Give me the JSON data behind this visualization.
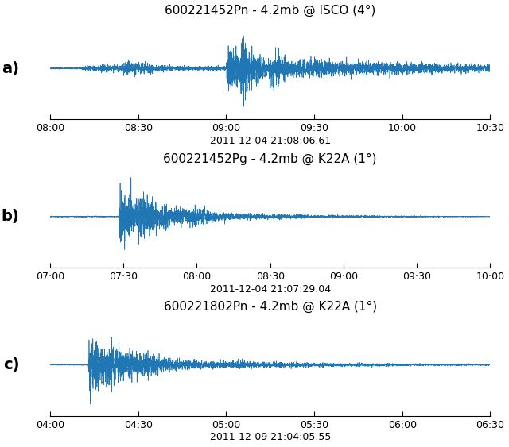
{
  "panels": [
    {
      "label": "a)",
      "title": "600221452Pn - 4.2mb @ ISCO (4°)",
      "xlabel": "2011-12-04 21:08:06.61",
      "xlim_minutes": [
        0,
        150
      ],
      "xtick_minutes": [
        0,
        30,
        60,
        90,
        120,
        150
      ],
      "xtick_labels": [
        "08:00",
        "08:30",
        "09:00",
        "09:30",
        "10:00",
        "10:30"
      ],
      "onset_minute": 10,
      "waveform_type": "a"
    },
    {
      "label": "b)",
      "title": "600221452Pg - 4.2mb @ K22A (1°)",
      "xlabel": "2011-12-04 21:07:29.04",
      "xlim_minutes": [
        0,
        180
      ],
      "xtick_minutes": [
        0,
        30,
        60,
        90,
        120,
        150,
        180
      ],
      "xtick_labels": [
        "07:00",
        "07:30",
        "08:00",
        "08:30",
        "09:00",
        "09:30",
        "10:00"
      ],
      "onset_minute": 28,
      "waveform_type": "b"
    },
    {
      "label": "c)",
      "title": "600221802Pn - 4.2mb @ K22A (1°)",
      "xlabel": "2011-12-09 21:04:05.55",
      "xlim_minutes": [
        0,
        150
      ],
      "xtick_minutes": [
        0,
        30,
        60,
        90,
        120,
        150
      ],
      "xtick_labels": [
        "04:00",
        "04:30",
        "05:00",
        "05:30",
        "06:00",
        "06:30"
      ],
      "onset_minute": 13,
      "waveform_type": "c"
    }
  ],
  "line_color": "#2077B4",
  "line_width": 0.5,
  "bg_color": "white",
  "label_fontsize": 14,
  "title_fontsize": 11,
  "tick_fontsize": 9,
  "xlabel_fontsize": 9
}
